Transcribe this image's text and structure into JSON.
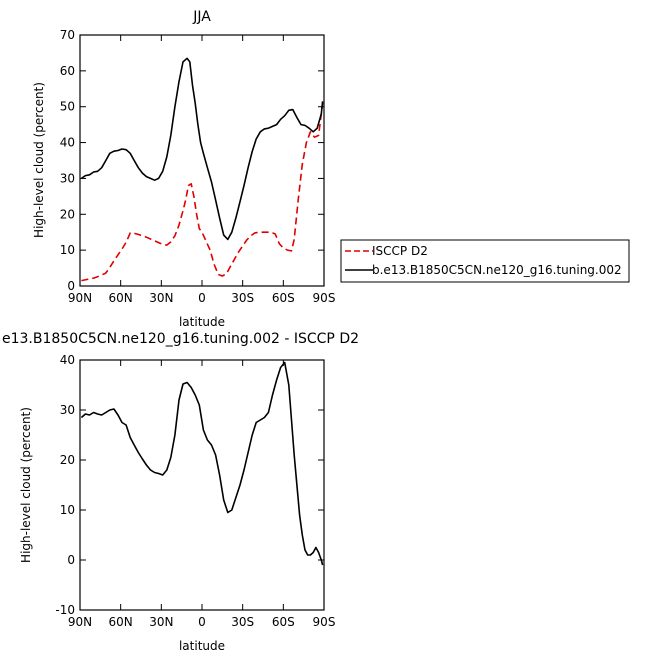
{
  "chart_data": [
    {
      "type": "line",
      "title": "JJA",
      "xlabel": "latitude",
      "ylabel": "High-level cloud (percent)",
      "xlim": [
        90,
        -90
      ],
      "ylim": [
        0,
        70
      ],
      "xticks": [
        90,
        60,
        30,
        0,
        -30,
        -60,
        -90
      ],
      "xtick_labels": [
        "90N",
        "60N",
        "30N",
        "0",
        "30S",
        "60S",
        "90S"
      ],
      "yticks": [
        0,
        10,
        20,
        30,
        40,
        50,
        60,
        70
      ],
      "legend_position": "right",
      "series": [
        {
          "name": "ISCCP D2",
          "color": "#e00000",
          "dash": "dashed",
          "x": [
            89,
            85,
            80,
            77,
            74,
            71,
            68,
            65,
            62,
            59,
            56,
            53,
            50,
            47,
            44,
            41,
            38,
            35,
            32,
            29,
            26,
            23,
            20,
            17,
            14,
            12,
            10,
            8,
            6,
            4,
            2,
            0,
            -3,
            -6,
            -9,
            -12,
            -15,
            -18,
            -21,
            -24,
            -27,
            -30,
            -33,
            -36,
            -39,
            -42,
            -45,
            -48,
            -51,
            -54,
            -57,
            -60,
            -63,
            -66,
            -68,
            -71,
            -74,
            -77,
            -80,
            -83,
            -86,
            -89
          ],
          "y": [
            1.5,
            1.8,
            2.2,
            2.6,
            3.1,
            3.6,
            5.2,
            7.0,
            8.7,
            10.3,
            12.2,
            14.8,
            14.7,
            14.4,
            14.0,
            13.6,
            13.1,
            12.6,
            12.1,
            11.6,
            11.4,
            12.3,
            14.0,
            17.0,
            21.0,
            24.0,
            28.0,
            28.5,
            25.0,
            20.0,
            16.0,
            15.0,
            12.5,
            10.0,
            6.0,
            3.2,
            2.8,
            3.4,
            5.5,
            7.5,
            9.5,
            11.2,
            12.8,
            14.0,
            14.8,
            15.0,
            15.0,
            15.0,
            15.0,
            14.5,
            11.8,
            10.6,
            10.0,
            9.8,
            13.0,
            24.0,
            34.0,
            40.0,
            43.0,
            41.5,
            42.0,
            51.0
          ]
        },
        {
          "name": "b.e13.B1850C5CN.ne120_g16.tuning.002",
          "color": "#000000",
          "dash": "solid",
          "x": [
            89,
            86,
            83,
            80,
            77,
            74,
            71,
            68,
            65,
            62,
            59,
            56,
            53,
            50,
            47,
            44,
            41,
            38,
            35,
            32,
            29,
            26,
            23,
            20,
            17,
            14,
            11,
            9,
            7,
            5,
            3,
            1,
            -1,
            -4,
            -7,
            -10,
            -13,
            -16,
            -19,
            -22,
            -25,
            -28,
            -31,
            -34,
            -37,
            -40,
            -43,
            -46,
            -49,
            -52,
            -55,
            -58,
            -61,
            -64,
            -67,
            -70,
            -73,
            -76,
            -79,
            -82,
            -85,
            -88,
            -89
          ],
          "y": [
            30.0,
            30.8,
            31.0,
            31.8,
            32.0,
            33.0,
            35.0,
            37.0,
            37.6,
            37.8,
            38.2,
            38.0,
            37.0,
            35.0,
            33.0,
            31.5,
            30.5,
            30.0,
            29.5,
            30.0,
            32.0,
            36.0,
            42.0,
            50.0,
            57.0,
            62.5,
            63.5,
            62.5,
            56.0,
            51.0,
            45.0,
            40.0,
            37.0,
            33.0,
            29.0,
            24.0,
            19.0,
            14.2,
            13.0,
            15.0,
            19.0,
            23.5,
            28.0,
            33.0,
            37.5,
            41.0,
            43.0,
            43.8,
            44.0,
            44.5,
            45.0,
            46.5,
            47.5,
            49.0,
            49.2,
            47.0,
            45.0,
            44.8,
            44.0,
            43.0,
            44.0,
            48.0,
            51.5
          ]
        }
      ]
    },
    {
      "type": "line",
      "title": "e13.B1850C5CN.ne120_g16.tuning.002 - ISCCP D2",
      "xlabel": "latitude",
      "ylabel": "High-level cloud (percent)",
      "xlim": [
        90,
        -90
      ],
      "ylim": [
        -10,
        40
      ],
      "xticks": [
        90,
        60,
        30,
        0,
        -30,
        -60,
        -90
      ],
      "xtick_labels": [
        "90N",
        "60N",
        "30N",
        "0",
        "30S",
        "60S",
        "90S"
      ],
      "yticks": [
        -10,
        0,
        10,
        20,
        30,
        40
      ],
      "series": [
        {
          "color": "#000000",
          "dash": "solid",
          "x": [
            89,
            86,
            83,
            80,
            77,
            74,
            71,
            68,
            65,
            62,
            59,
            56,
            53,
            50,
            47,
            44,
            41,
            38,
            35,
            32,
            29,
            26,
            23,
            20,
            17,
            14,
            11,
            8,
            5,
            2,
            -1,
            -4,
            -7,
            -10,
            -13,
            -16,
            -19,
            -22,
            -25,
            -28,
            -31,
            -34,
            -37,
            -40,
            -43,
            -46,
            -49,
            -52,
            -55,
            -58,
            -61,
            -64,
            -66,
            -68,
            -70,
            -72,
            -74,
            -76,
            -78,
            -80,
            -82,
            -84,
            -86,
            -88,
            -89
          ],
          "y": [
            28.5,
            29.2,
            29.0,
            29.5,
            29.2,
            29.0,
            29.5,
            30.0,
            30.2,
            29.0,
            27.5,
            27.0,
            24.5,
            23.0,
            21.5,
            20.2,
            19.0,
            18.0,
            17.5,
            17.3,
            17.0,
            18.0,
            20.5,
            25.0,
            32.0,
            35.2,
            35.5,
            34.5,
            33.0,
            31.0,
            26.0,
            24.0,
            23.0,
            21.0,
            17.0,
            12.0,
            9.5,
            10.0,
            12.5,
            15.0,
            18.0,
            21.5,
            25.0,
            27.5,
            28.0,
            28.5,
            29.5,
            33.0,
            36.0,
            38.5,
            39.5,
            35.0,
            28.0,
            21.0,
            15.0,
            9.0,
            5.0,
            2.0,
            1.0,
            1.0,
            1.5,
            2.5,
            1.5,
            0.0,
            -1.0
          ]
        }
      ]
    }
  ]
}
